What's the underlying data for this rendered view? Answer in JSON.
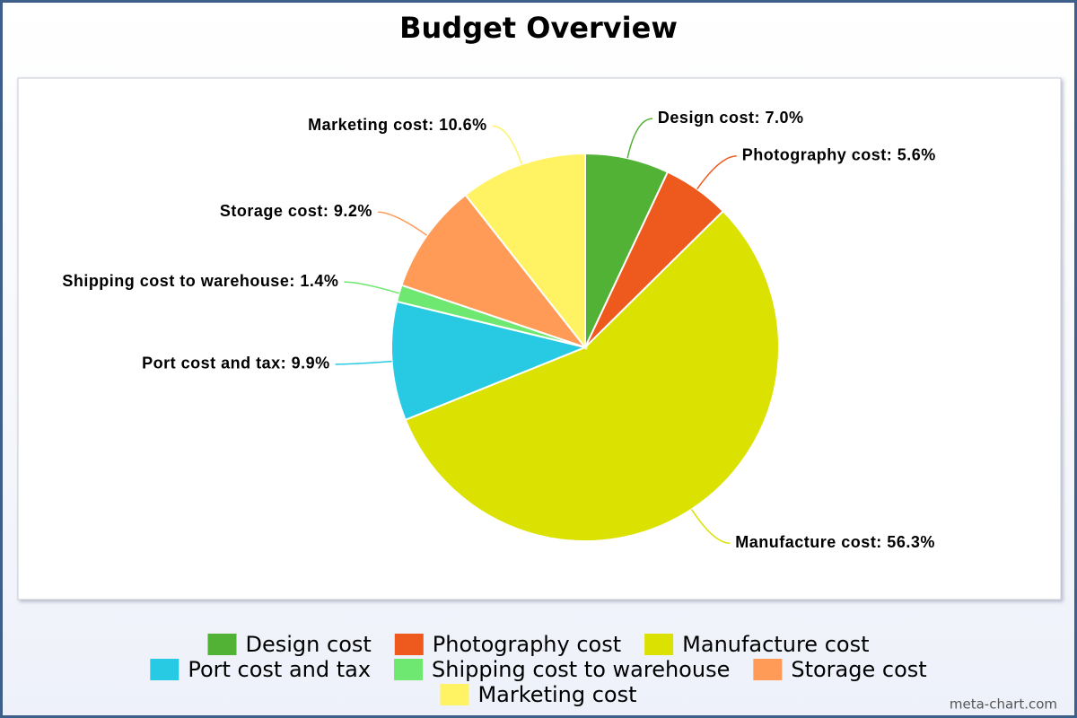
{
  "chart_data": {
    "type": "pie",
    "title": "Budget Overview",
    "categories": [
      "Design cost",
      "Photography cost",
      "Manufacture cost",
      "Port cost and tax",
      "Shipping cost to warehouse",
      "Storage cost",
      "Marketing cost"
    ],
    "values": [
      7.0,
      5.6,
      56.3,
      9.9,
      1.4,
      9.2,
      10.6
    ],
    "value_labels": [
      "Design cost: 7.0%",
      "Photography cost: 5.6%",
      "Manufacture cost: 56.3%",
      "Port cost and tax: 9.9%",
      "Shipping cost to warehouse: 1.4%",
      "Storage cost: 9.2%",
      "Marketing cost: 10.6%"
    ],
    "colors": [
      "#52b235",
      "#ee5a1e",
      "#dbe100",
      "#27c9e3",
      "#6ee870",
      "#ff9a57",
      "#fff363"
    ],
    "legend": "bottom",
    "credit": "meta-chart.com"
  }
}
